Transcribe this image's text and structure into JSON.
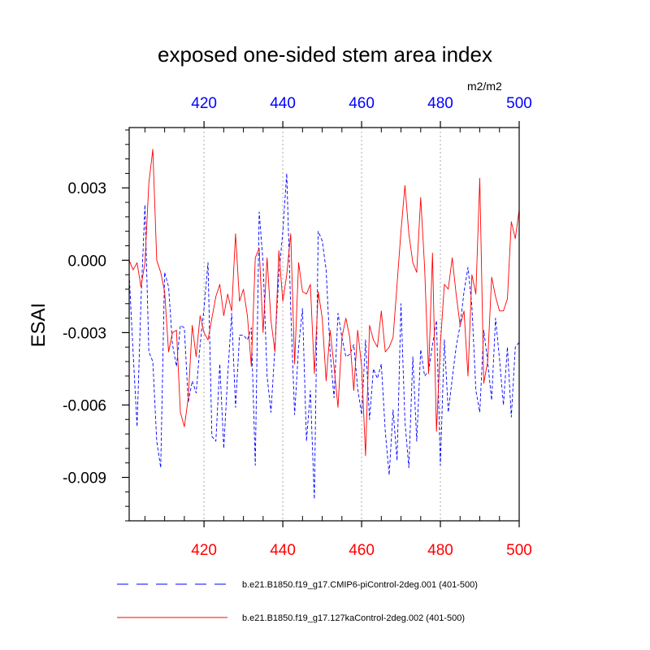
{
  "chart_data": {
    "type": "line",
    "title": "exposed one-sided stem area index",
    "units": "m2/m2",
    "ylabel": "ESAI",
    "xlabel": "",
    "xlim": [
      401,
      500
    ],
    "ylim": [
      -0.0108,
      0.0055
    ],
    "x_ticks": [
      420,
      440,
      460,
      480,
      500
    ],
    "y_ticks": [
      0.003,
      0.0,
      -0.003,
      -0.006,
      -0.009
    ],
    "y_tick_labels": [
      "0.003",
      "0.000",
      "-0.003",
      "-0.006",
      "-0.009"
    ],
    "grid": "vertical dotted at major x ticks",
    "legend_position": "bottom",
    "x": [
      401,
      402,
      403,
      404,
      405,
      406,
      407,
      408,
      409,
      410,
      411,
      412,
      413,
      414,
      415,
      416,
      417,
      418,
      419,
      420,
      421,
      422,
      423,
      424,
      425,
      426,
      427,
      428,
      429,
      430,
      431,
      432,
      433,
      434,
      435,
      436,
      437,
      438,
      439,
      440,
      441,
      442,
      443,
      444,
      445,
      446,
      447,
      448,
      449,
      450,
      451,
      452,
      453,
      454,
      455,
      456,
      457,
      458,
      459,
      460,
      461,
      462,
      463,
      464,
      465,
      466,
      467,
      468,
      469,
      470,
      471,
      472,
      473,
      474,
      475,
      476,
      477,
      478,
      479,
      480,
      481,
      482,
      483,
      484,
      485,
      486,
      487,
      488,
      489,
      490,
      491,
      492,
      493,
      494,
      495,
      496,
      497,
      498,
      499,
      500
    ],
    "series": [
      {
        "name": "b.e21.B1850.f19_g17.CMIP6-piControl-2deg.001 (401-500)",
        "color": "#0000ff",
        "style": "dashed",
        "values": [
          -0.0006,
          -0.0038,
          -0.0069,
          -0.0017,
          0.0023,
          -0.0038,
          -0.0042,
          -0.0075,
          -0.0086,
          -0.0005,
          -0.0011,
          -0.0035,
          -0.0044,
          -0.0027,
          -0.0028,
          -0.0059,
          -0.005,
          -0.0055,
          -0.0035,
          -0.002,
          -0.0001,
          -0.0073,
          -0.0075,
          -0.0043,
          -0.0078,
          -0.0048,
          -0.0022,
          -0.0061,
          -0.0031,
          -0.0031,
          -0.0033,
          -0.0028,
          -0.0085,
          0.002,
          -0.0001,
          -0.0048,
          -0.0063,
          -0.0036,
          -0.0006,
          0.0012,
          0.0036,
          -0.002,
          -0.0064,
          -0.0036,
          -0.002,
          -0.0075,
          -0.0054,
          -0.0099,
          0.0012,
          0.0008,
          -0.0004,
          -0.0038,
          -0.0057,
          -0.0022,
          -0.0032,
          -0.004,
          -0.0039,
          -0.0035,
          -0.0053,
          -0.0064,
          -0.0033,
          -0.0066,
          -0.0045,
          -0.0049,
          -0.0043,
          -0.0071,
          -0.0089,
          -0.0062,
          -0.0083,
          -0.0018,
          -0.0067,
          -0.0086,
          -0.004,
          -0.0075,
          -0.0037,
          -0.0048,
          -0.0046,
          -0.0035,
          -0.0025,
          -0.0085,
          -0.0033,
          -0.0063,
          -0.0049,
          -0.0036,
          -0.0027,
          -0.0013,
          -0.0003,
          -0.0019,
          -0.0054,
          -0.0063,
          -0.0029,
          -0.0042,
          -0.0058,
          -0.0024,
          -0.0041,
          -0.006,
          -0.0036,
          -0.0065,
          -0.0036,
          -0.0034
        ]
      },
      {
        "name": "b.e21.B1850.f19_g17.127kaControl-2deg.002 (401-500)",
        "color": "#ff0000",
        "style": "solid",
        "values": [
          0.0,
          -0.0004,
          -0.0001,
          -0.0011,
          -0.0001,
          0.0032,
          0.0046,
          0.0,
          -0.0005,
          -0.0013,
          -0.0038,
          -0.003,
          -0.0029,
          -0.0063,
          -0.0069,
          -0.0057,
          -0.0027,
          -0.004,
          -0.0023,
          -0.003,
          -0.0033,
          -0.0024,
          -0.0015,
          -0.001,
          -0.0023,
          -0.0014,
          -0.0021,
          0.0011,
          -0.0017,
          -0.0012,
          -0.0023,
          -0.0044,
          0.0001,
          0.0005,
          -0.003,
          0.0001,
          -0.0025,
          -0.0038,
          0.0004,
          -0.0017,
          -0.0006,
          0.0011,
          -0.0043,
          -0.0001,
          -0.0013,
          -0.0014,
          -0.001,
          -0.0047,
          -0.0013,
          -0.0024,
          -0.005,
          -0.0029,
          -0.0044,
          -0.0061,
          -0.0032,
          -0.0024,
          -0.0032,
          -0.0054,
          -0.0029,
          -0.0044,
          -0.0081,
          -0.0027,
          -0.0033,
          -0.0036,
          -0.0021,
          -0.0038,
          -0.0036,
          -0.0032,
          -0.001,
          0.0012,
          0.0031,
          0.0011,
          -0.0001,
          -0.0005,
          0.0026,
          -0.0003,
          -0.0047,
          0.0003,
          -0.0071,
          -0.0035,
          -0.001,
          -0.0012,
          0.0001,
          -0.0014,
          -0.0027,
          -0.0021,
          -0.0048,
          -0.0006,
          -0.0014,
          0.0034,
          -0.0051,
          -0.0042,
          -0.0007,
          -0.0015,
          -0.0021,
          -0.0021,
          -0.0016,
          0.0016,
          0.0009,
          0.0021
        ]
      }
    ]
  }
}
